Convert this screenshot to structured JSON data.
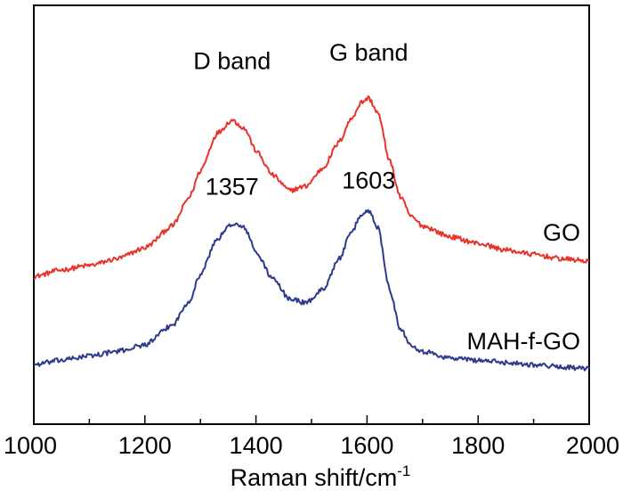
{
  "chart_data": {
    "type": "line",
    "title": "",
    "xlabel": "Raman shift/cm",
    "xlabel_superscript": "-1",
    "ylabel": "",
    "xlim": [
      1000,
      2000
    ],
    "xticks": [
      1000,
      1200,
      1400,
      1600,
      1800,
      2000
    ],
    "y_ticks_shown": false,
    "grid": false,
    "series": [
      {
        "name": "GO",
        "color": "#e8332a",
        "x": [
          1000,
          1050,
          1100,
          1150,
          1200,
          1250,
          1280,
          1300,
          1330,
          1357,
          1380,
          1400,
          1430,
          1460,
          1490,
          1520,
          1550,
          1570,
          1590,
          1603,
          1620,
          1640,
          1660,
          1680,
          1700,
          1750,
          1800,
          1850,
          1900,
          1950,
          2000
        ],
        "values": [
          0.07,
          0.1,
          0.12,
          0.15,
          0.2,
          0.3,
          0.43,
          0.55,
          0.72,
          0.78,
          0.74,
          0.64,
          0.53,
          0.46,
          0.48,
          0.56,
          0.68,
          0.78,
          0.86,
          0.88,
          0.81,
          0.6,
          0.43,
          0.34,
          0.3,
          0.25,
          0.22,
          0.19,
          0.17,
          0.15,
          0.14
        ]
      },
      {
        "name": "MAH-f-GO",
        "color": "#2e3a8c",
        "x": [
          1000,
          1050,
          1100,
          1150,
          1200,
          1250,
          1280,
          1300,
          1330,
          1357,
          1380,
          1400,
          1430,
          1460,
          1490,
          1520,
          1550,
          1570,
          1590,
          1603,
          1620,
          1640,
          1660,
          1680,
          1700,
          1750,
          1800,
          1850,
          1900,
          1950,
          2000
        ],
        "values": [
          -0.33,
          -0.31,
          -0.29,
          -0.27,
          -0.24,
          -0.15,
          -0.04,
          0.08,
          0.24,
          0.31,
          0.29,
          0.18,
          0.06,
          -0.03,
          -0.05,
          0.01,
          0.15,
          0.26,
          0.35,
          0.37,
          0.29,
          0.02,
          -0.17,
          -0.24,
          -0.27,
          -0.3,
          -0.31,
          -0.32,
          -0.33,
          -0.34,
          -0.35
        ]
      }
    ],
    "curve_labels": [
      "GO",
      "MAH-f-GO"
    ],
    "annotations": [
      {
        "text": "D band",
        "x": 1357,
        "y": 1.01
      },
      {
        "text": "G band",
        "x": 1603,
        "y": 1.05
      },
      {
        "text": "1357",
        "x": 1357,
        "y": 0.44
      },
      {
        "text": "1603",
        "x": 1603,
        "y": 0.47
      }
    ]
  }
}
